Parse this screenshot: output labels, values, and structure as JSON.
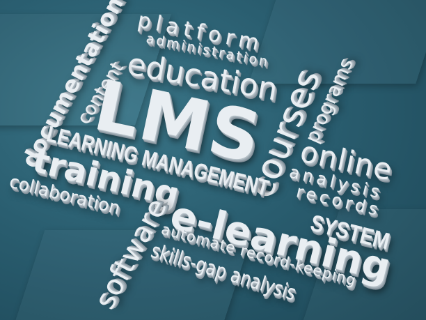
{
  "scene": {
    "background_color": "#2b5f71",
    "text_color": "#e9eef2",
    "words": {
      "lms": "LMS",
      "platform": "platform",
      "administration": "administration",
      "education": "education",
      "documentation": "documentation",
      "content": "content",
      "courses": "courses",
      "programs": "programs",
      "online": "online",
      "analysis": "analysis",
      "records": "records",
      "learning_management": "LEARNING MANAGEMENT",
      "system": "SYSTEM",
      "training": "training",
      "collaboration": "collaboration",
      "software": "software",
      "e_learning": "e-learning",
      "automate": "automate record-keeping",
      "skills_gap": "skills-gap analysis"
    }
  }
}
